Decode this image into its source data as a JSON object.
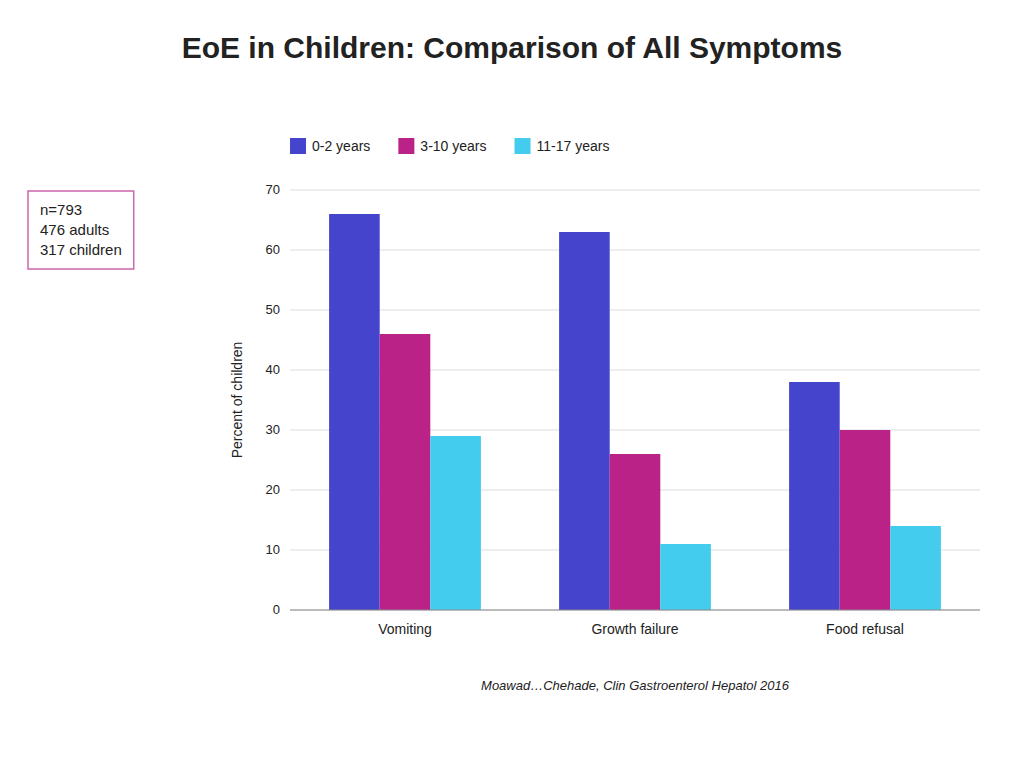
{
  "chart_data": {
    "type": "bar",
    "title": "EoE in Children: Comparison of All Symptoms",
    "categories": [
      "Vomiting",
      "Growth failure",
      "Food refusal"
    ],
    "series": [
      {
        "name": "0-2 years",
        "color": "#4444CC",
        "values": [
          66,
          63,
          38
        ]
      },
      {
        "name": "3-10 years",
        "color": "#BB2288",
        "values": [
          46,
          26,
          30
        ]
      },
      {
        "name": "11-17 years",
        "color": "#44CCEE",
        "values": [
          29,
          11,
          14
        ]
      }
    ],
    "ylabel": "Percent of children",
    "ylim": [
      0,
      70
    ],
    "yticks": [
      0,
      10,
      20,
      30,
      40,
      50,
      60,
      70
    ],
    "grid": true,
    "legend": "top",
    "annotations": [
      "n=793\n476 adults\n317 children",
      "Moawad…Chehade, Clin Gastroenterol Hepatol 2016"
    ]
  }
}
